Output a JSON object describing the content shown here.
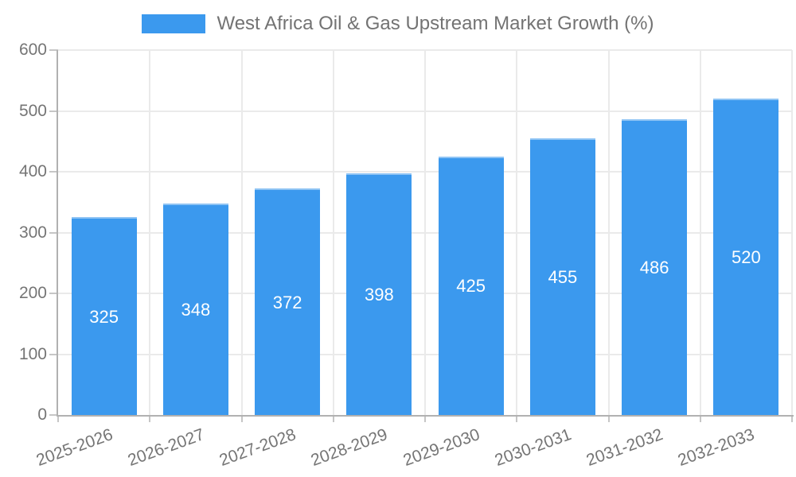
{
  "legend": {
    "label": "West Africa Oil & Gas Upstream Market Growth (%)"
  },
  "chart_data": {
    "type": "bar",
    "title": "West Africa Oil & Gas Upstream Market Growth (%)",
    "categories": [
      "2025-2026",
      "2026-2027",
      "2027-2028",
      "2028-2029",
      "2029-2030",
      "2030-2031",
      "2031-2032",
      "2032-2033"
    ],
    "series": [
      {
        "name": "West Africa Oil & Gas Upstream Market Growth (%)",
        "values": [
          325,
          348,
          372,
          398,
          425,
          455,
          486,
          520
        ]
      }
    ],
    "value_labels": [
      "325",
      "348",
      "372",
      "398",
      "425",
      "455",
      "486",
      "520"
    ],
    "ylabel": "",
    "xlabel": "",
    "ylim": [
      0,
      600
    ],
    "yticks": [
      0,
      100,
      200,
      300,
      400,
      500,
      600
    ],
    "grid": "on",
    "legend_position": "top",
    "x_label_rotation_deg": -20,
    "colors": {
      "bar": "#3B99EE",
      "bar_top_border": "#8FC4F4",
      "value_label": "#FFFFFF",
      "axis_text": "#757575",
      "legend_text": "#737373",
      "grid_line": "#EAEAEA",
      "axis_line": "#B1B1B1",
      "tick": "#C6C6C6",
      "background": "#FFFFFF"
    }
  }
}
